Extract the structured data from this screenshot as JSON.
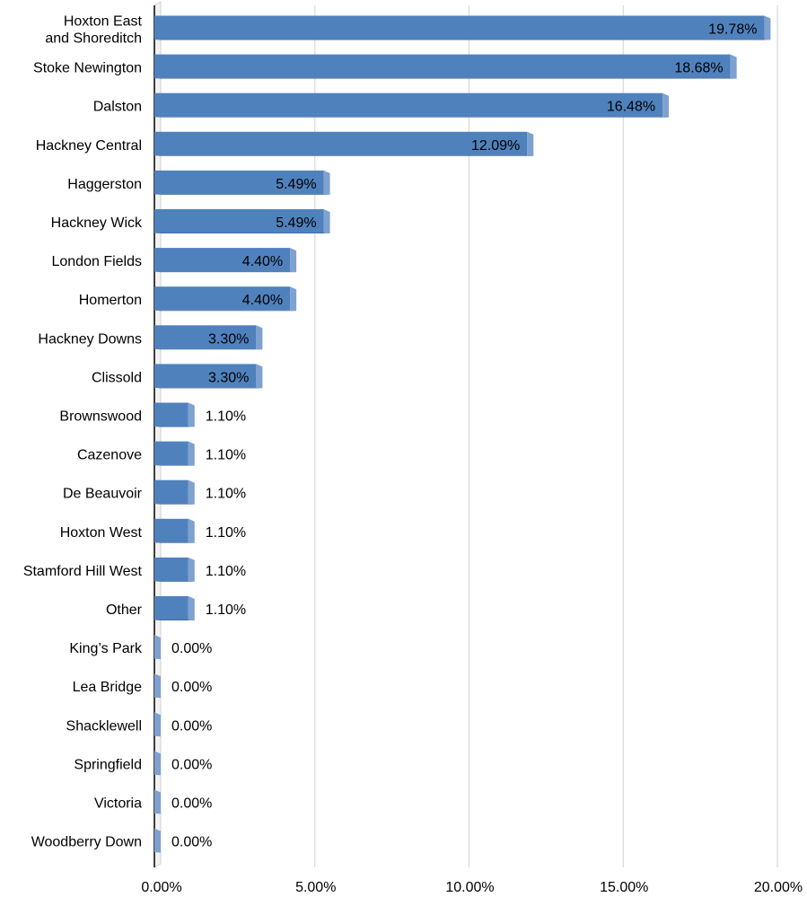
{
  "chart_data": {
    "type": "bar",
    "orientation": "horizontal",
    "style": "3d",
    "categories": [
      "Hoxton East and Shoreditch",
      "Stoke Newington",
      "Dalston",
      "Hackney Central",
      "Haggerston",
      "Hackney Wick",
      "London Fields",
      "Homerton",
      "Hackney Downs",
      "Clissold",
      "Brownswood",
      "Cazenove",
      "De Beauvoir",
      "Hoxton West",
      "Stamford Hill West",
      "Other",
      "King’s Park",
      "Lea Bridge",
      "Shacklewell",
      "Springfield",
      "Victoria",
      "Woodberry Down"
    ],
    "values": [
      19.78,
      18.68,
      16.48,
      12.09,
      5.49,
      5.49,
      4.4,
      4.4,
      3.3,
      3.3,
      1.1,
      1.1,
      1.1,
      1.1,
      1.1,
      1.1,
      0.0,
      0.0,
      0.0,
      0.0,
      0.0,
      0.0
    ],
    "value_labels": [
      "19.78%",
      "18.68%",
      "16.48%",
      "12.09%",
      "5.49%",
      "5.49%",
      "4.40%",
      "4.40%",
      "3.30%",
      "3.30%",
      "1.10%",
      "1.10%",
      "1.10%",
      "1.10%",
      "1.10%",
      "1.10%",
      "0.00%",
      "0.00%",
      "0.00%",
      "0.00%",
      "0.00%",
      "0.00%"
    ],
    "xticks": [
      0,
      5,
      10,
      15,
      20
    ],
    "xtick_labels": [
      "0.00%",
      "5.00%",
      "10.00%",
      "15.00%",
      "20.00%"
    ],
    "xlim": [
      0,
      20
    ],
    "title": "",
    "xlabel": "",
    "ylabel": "",
    "grid": "vertical",
    "legend": "none",
    "colors": {
      "bar_front": "#4f81bd",
      "bar_top": "#385d8a",
      "bar_side": "#7ea1cf",
      "grid": "#d9d9d9",
      "text": "#000000"
    }
  }
}
